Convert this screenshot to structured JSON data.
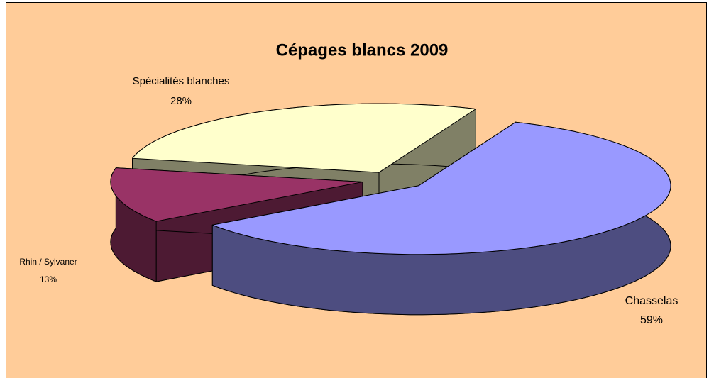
{
  "chart_data": {
    "type": "pie3d",
    "title": "Cépages blancs 2009",
    "categories": [
      "Chasselas",
      "Rhin / Sylvaner",
      "Spécialités blanches"
    ],
    "values": [
      59,
      13,
      28
    ],
    "value_labels": [
      "59%",
      "13%",
      "28%"
    ],
    "colors": [
      "#9999ff",
      "#993366",
      "#ffffcc"
    ],
    "background": "#ffcc99"
  }
}
